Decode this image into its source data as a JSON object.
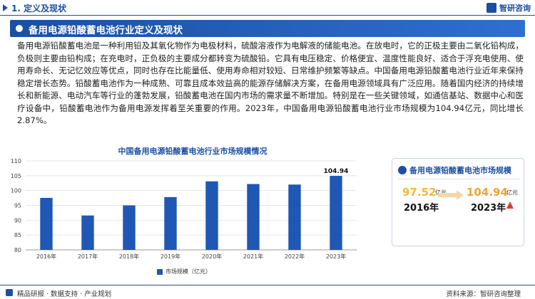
{
  "header": {
    "section_title": "1. 定义及现状",
    "brand": "智研咨询"
  },
  "heading": "备用电源铅酸蓄电池行业定义及现状",
  "body_text": "备用电源铅酸蓄电池是一种利用铅及其氧化物作为电极材料，硫酸溶液作为电解液的储能电池。在放电时，它的正极主要由二氧化铅构成，负极则主要由铅构成；在充电时，正负极的主要成分都转变为硫酸铅。它具有电压稳定、价格便宜、温度性能良好、适合于浮充电使用、使用寿命长、无记忆效应等优点，同时也存在比能量低、使用寿命相对较短、日常维护频繁等缺点。中国备用电源铅酸蓄电池行业近年来保持稳定增长态势。铅酸蓄电池作为一种成熟、可靠且成本效益高的能源存储解决方案，在备用电源领域具有广泛应用。随着国内经济的持续增长和新能源、电动汽车等行业的蓬勃发展，铅酸蓄电池在国内市场的需求量不断增加。特别是在一些关键领域，如通信基站、数据中心和医疗设备中，铅酸蓄电池作为备用电源发挥着至关重要的作用。2023年，中国备用电源铅酸蓄电池行业市场规模为104.94亿元，同比增长2.87%。",
  "chart_data": {
    "type": "bar",
    "title": "中国备用电源铅酸蓄电池行业市场规模情况",
    "categories": [
      "2016年",
      "2017年",
      "2018年",
      "2019年",
      "2020年",
      "2021年",
      "2022年",
      "2023年"
    ],
    "series": [
      {
        "name": "市场规模（亿元）",
        "values": [
          97.52,
          91.6,
          95.0,
          97.8,
          103.1,
          102.2,
          102.02,
          104.94
        ]
      }
    ],
    "data_labels": {
      "2023年": "104.94"
    },
    "ylim": [
      80,
      110
    ],
    "yticks": [
      80,
      85,
      90,
      95,
      100,
      105,
      110
    ],
    "color": "#1f57b4",
    "grid": true,
    "legend": "bottom"
  },
  "panel": {
    "title": "备用电源铅酸蓄电池市场规模",
    "left_value": "97.52",
    "left_unit": "亿元",
    "left_year": "2016年",
    "right_value": "104.94",
    "right_unit": "亿元",
    "right_year": "2023年"
  },
  "footer": {
    "left": "精品研报 · 数据支持 · 产业规划",
    "right": "资料来源：智研咨询整理"
  }
}
